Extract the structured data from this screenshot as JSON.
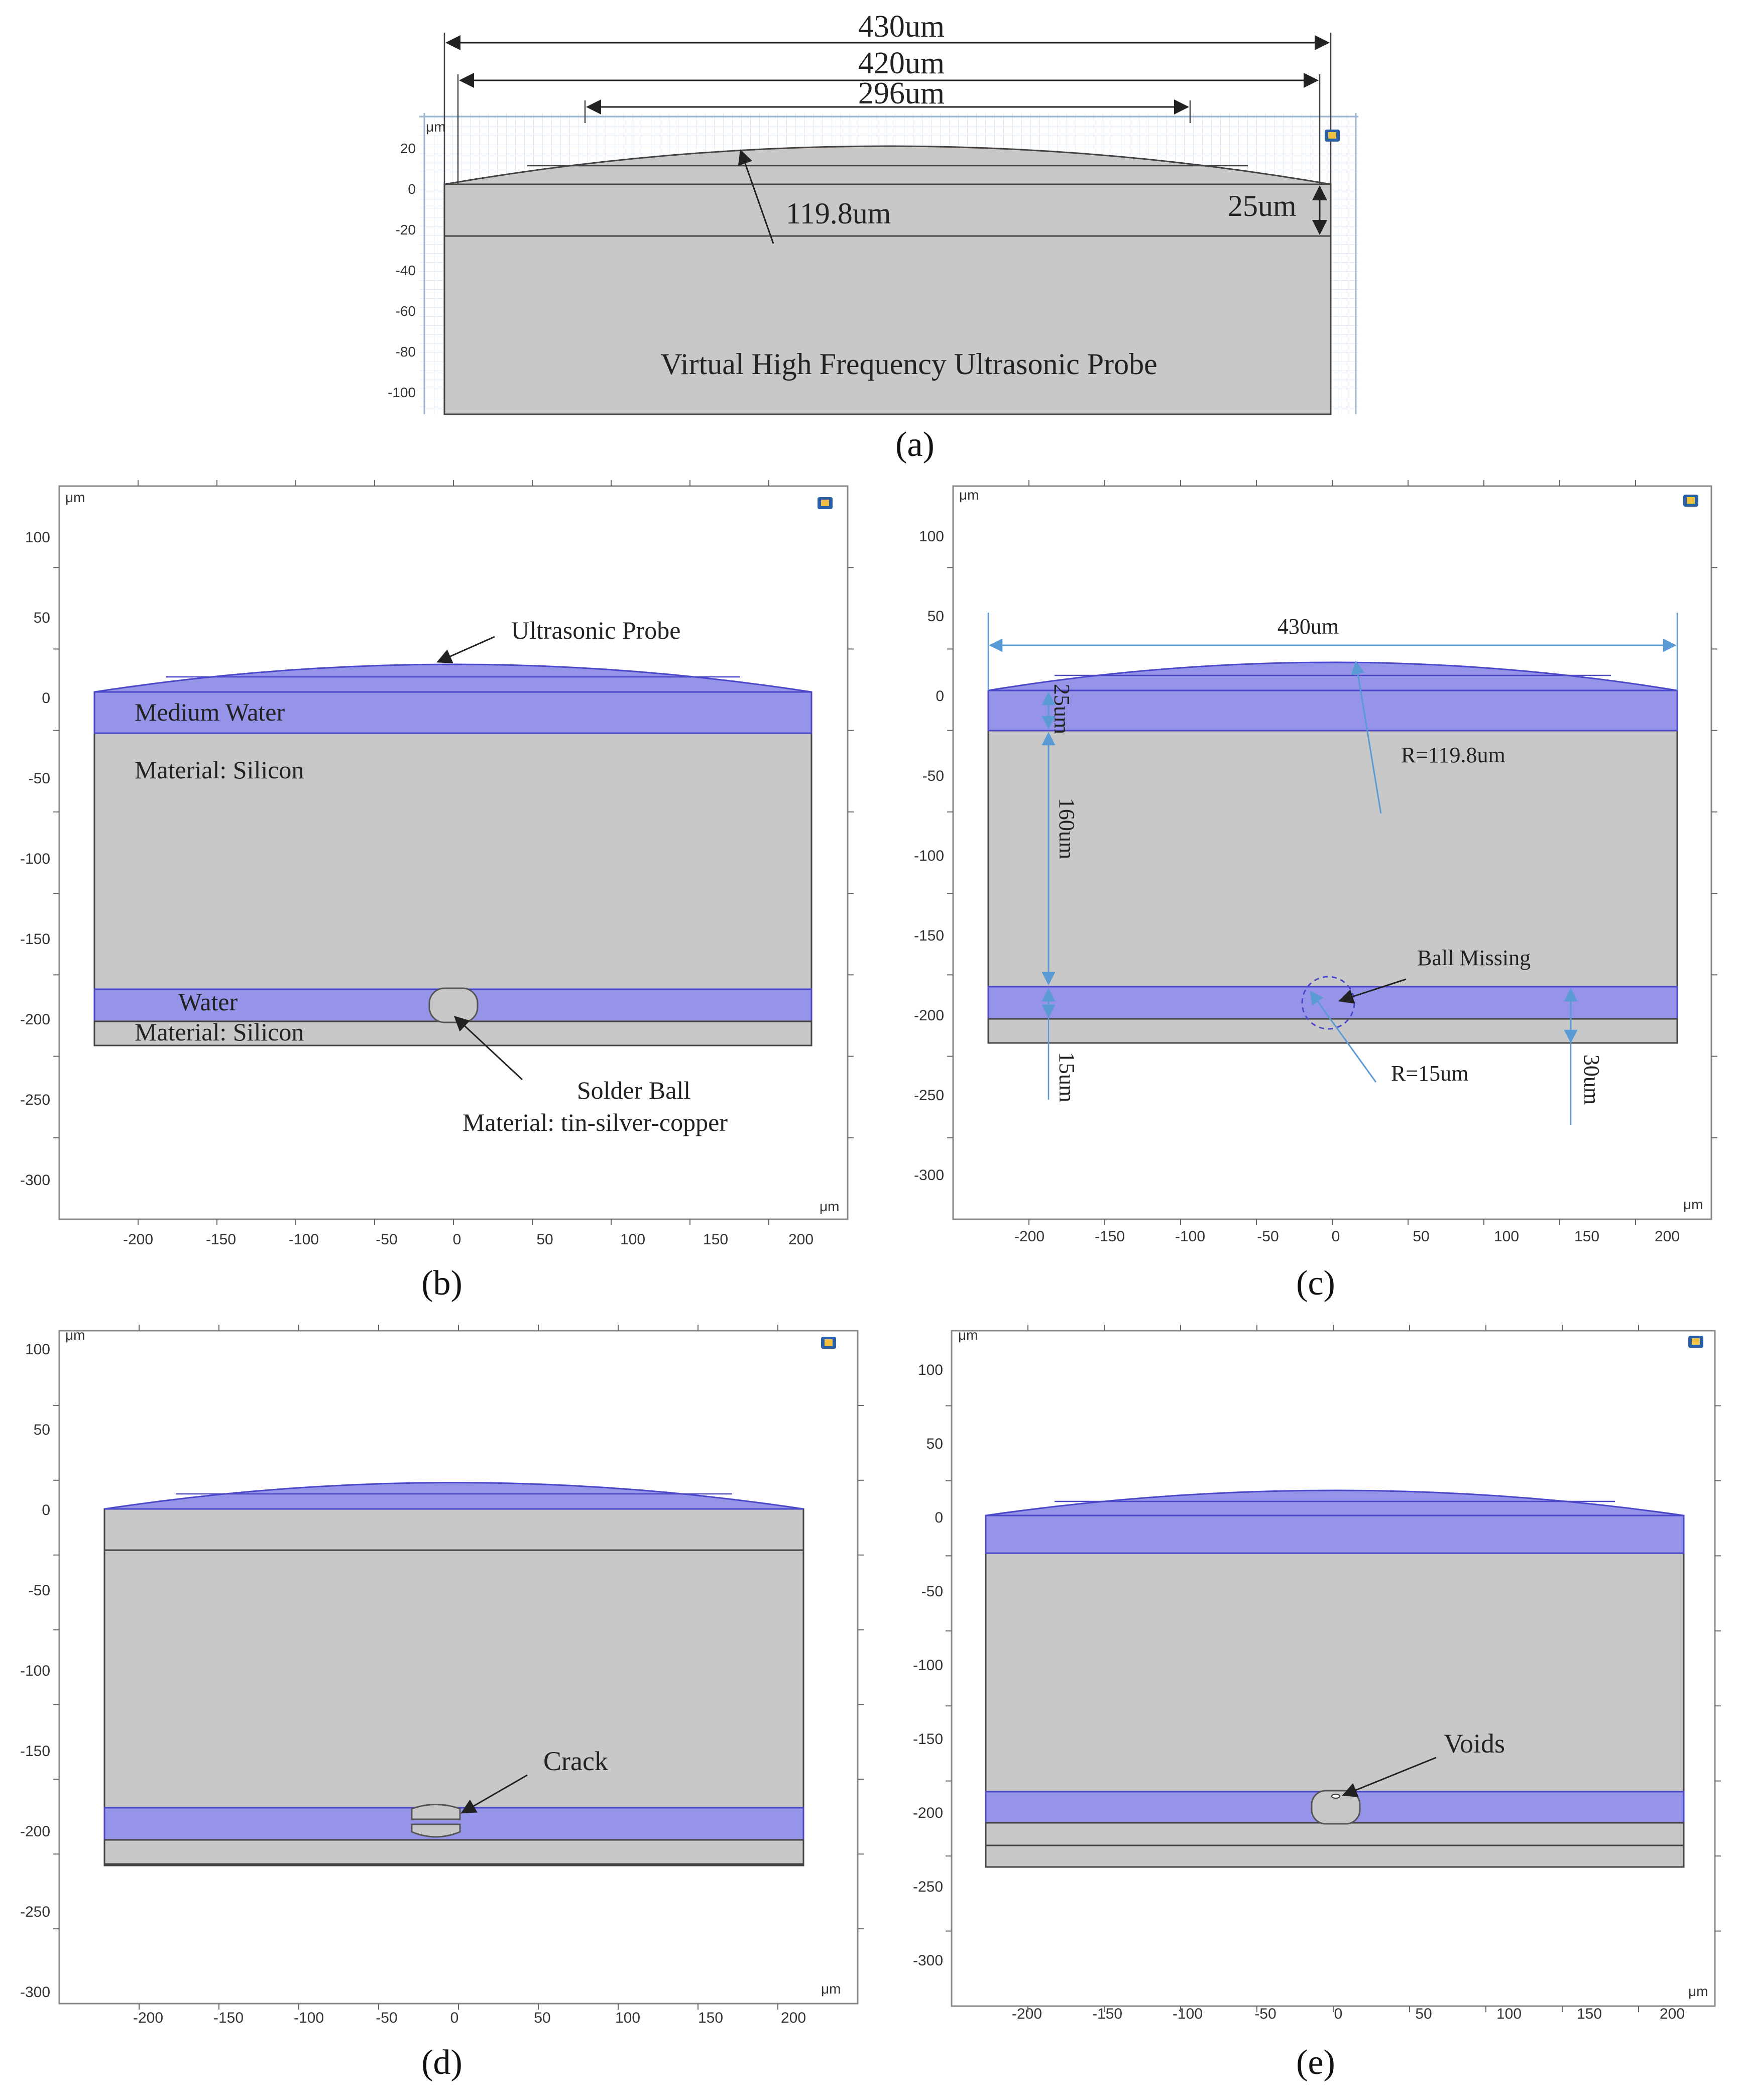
{
  "figure": {
    "panel_labels": [
      "(a)",
      "(b)",
      "(c)",
      "(d)",
      "(e)"
    ],
    "unit_label": "μm",
    "colors": {
      "silicon": "#c8c8c8",
      "water": "#9594e8",
      "water_edge": "#4a48c8",
      "dimension_blue": "#5b9bd5",
      "grid": "#bfd7ea",
      "frame": "#888888"
    }
  },
  "panel_a": {
    "label": "(a)",
    "unit": "μm",
    "y_ticks": [
      "20",
      "0",
      "-20",
      "-40",
      "-60",
      "-80",
      "-100"
    ],
    "dim_430": "430um",
    "dim_420": "420um",
    "dim_296": "296um",
    "radius": "119.8um",
    "thickness": "25um",
    "probe_label": "Virtual High Frequency Ultrasonic Probe"
  },
  "panel_b": {
    "label": "(b)",
    "unit_top": "μm",
    "unit_bottom": "μm",
    "y_ticks": [
      "100",
      "50",
      "0",
      "-50",
      "-100",
      "-150",
      "-200",
      "-250",
      "-300"
    ],
    "x_ticks": [
      "-200",
      "-150",
      "-100",
      "-50",
      "0",
      "50",
      "100",
      "150",
      "200"
    ],
    "probe_label": "Ultrasonic Probe",
    "medium_label": "Medium Water",
    "material_top": "Material: Silicon",
    "water_label": "Water",
    "material_bottom": "Material: Silicon",
    "ball_label": "Solder Ball",
    "ball_material": "Material:  tin-silver-copper"
  },
  "panel_c": {
    "label": "(c)",
    "unit_top": "μm",
    "unit_bottom": "μm",
    "y_ticks": [
      "100",
      "50",
      "0",
      "-50",
      "-100",
      "-150",
      "-200",
      "-250",
      "-300"
    ],
    "x_ticks": [
      "-200",
      "-150",
      "-100",
      "-50",
      "0",
      "50",
      "100",
      "150",
      "200"
    ],
    "width_label": "430um",
    "radius_label": "R=119.8um",
    "dim_25": "25um",
    "dim_160": "160um",
    "dim_15": "15um",
    "dim_30": "30um",
    "ball_missing": "Ball Missing",
    "ball_radius": "R=15um"
  },
  "panel_d": {
    "label": "(d)",
    "unit_top": "μm",
    "unit_bottom": "μm",
    "y_ticks": [
      "100",
      "50",
      "0",
      "-50",
      "-100",
      "-150",
      "-200",
      "-250",
      "-300"
    ],
    "x_ticks": [
      "-200",
      "-150",
      "-100",
      "-50",
      "0",
      "50",
      "100",
      "150",
      "200"
    ],
    "crack_label": "Crack"
  },
  "panel_e": {
    "label": "(e)",
    "unit_top": "μm",
    "unit_bottom": "μm",
    "y_ticks": [
      "100",
      "50",
      "0",
      "-50",
      "-100",
      "-150",
      "-200",
      "-250",
      "-300"
    ],
    "x_ticks": [
      "-200",
      "-150",
      "-100",
      "-50",
      "0",
      "50",
      "100",
      "150",
      "200"
    ],
    "voids_label": "Voids"
  }
}
